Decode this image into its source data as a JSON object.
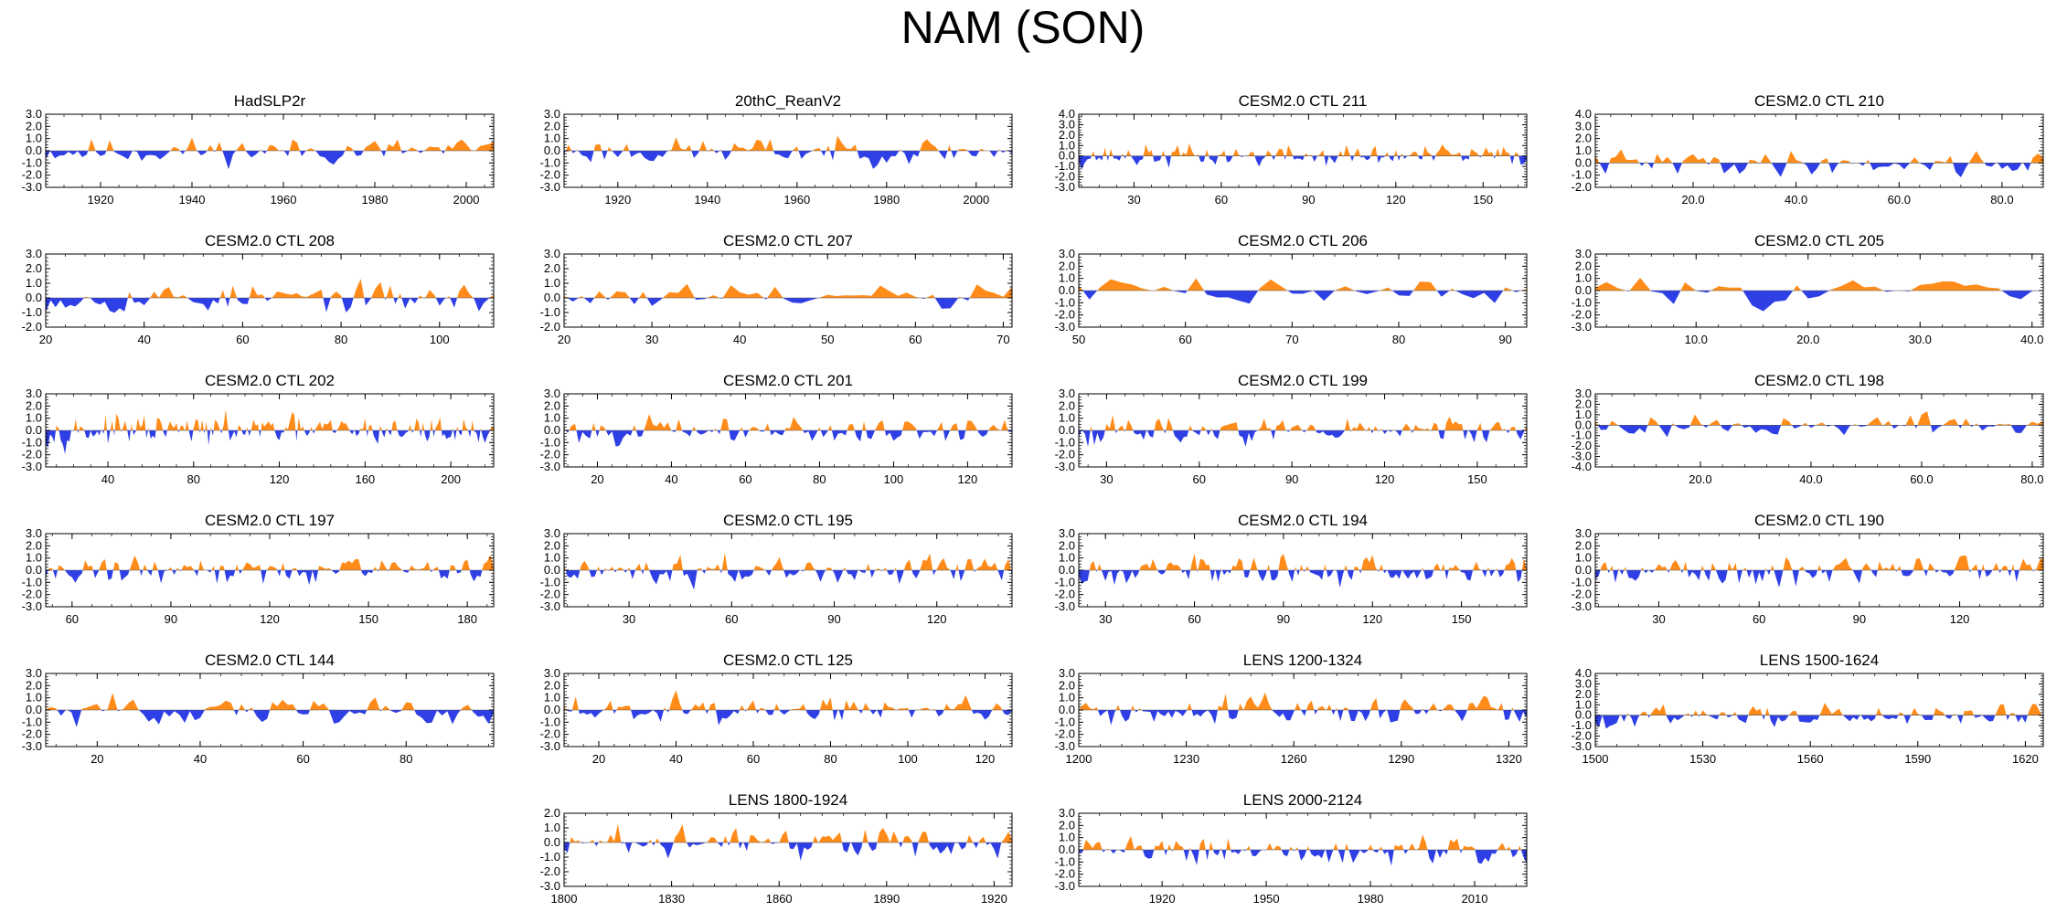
{
  "title": "NAM (SON)",
  "colors": {
    "positive": "#ff8c1a",
    "negative": "#2f3fe6",
    "axis": "#000000"
  },
  "chart_data": [
    {
      "type": "area",
      "title": "HadSLP2r",
      "ylim": [
        -3,
        3
      ],
      "yticks": [
        "3.0",
        "2.0",
        "1.0",
        "0.0",
        "-1.0",
        "-2.0",
        "-3.0"
      ],
      "xlim": [
        1908,
        2006
      ],
      "xticks": [
        1920,
        1940,
        1960,
        1980,
        2000
      ],
      "xtick_labels": [
        "1920",
        "1940",
        "1960",
        "1980",
        "2000"
      ],
      "seed": 11,
      "amp": 1.1
    },
    {
      "type": "area",
      "title": "20thC_ReanV2",
      "ylim": [
        -3,
        3
      ],
      "yticks": [
        "3.0",
        "2.0",
        "1.0",
        "0.0",
        "-1.0",
        "-2.0",
        "-3.0"
      ],
      "xlim": [
        1908,
        2008
      ],
      "xticks": [
        1920,
        1940,
        1960,
        1980,
        2000
      ],
      "xtick_labels": [
        "1920",
        "1940",
        "1960",
        "1980",
        "2000"
      ],
      "seed": 23,
      "amp": 1.1
    },
    {
      "type": "area",
      "title": "CESM2.0 CTL 211",
      "ylim": [
        -3,
        4
      ],
      "yticks": [
        "4.0",
        "3.0",
        "2.0",
        "1.0",
        "0.0",
        "-1.0",
        "-2.0",
        "-3.0"
      ],
      "xlim": [
        11,
        165
      ],
      "xticks": [
        30,
        60,
        90,
        120,
        150
      ],
      "xtick_labels": [
        "30",
        "60",
        "90",
        "120",
        "150"
      ],
      "seed": 37,
      "amp": 1.1
    },
    {
      "type": "area",
      "title": "CESM2.0 CTL 210",
      "ylim": [
        -2,
        4
      ],
      "yticks": [
        "4.0",
        "3.0",
        "2.0",
        "1.0",
        "0.0",
        "-1.0",
        "-2.0"
      ],
      "xlim": [
        1,
        88
      ],
      "xticks": [
        20,
        40,
        60,
        80
      ],
      "xtick_labels": [
        "20.0",
        "40.0",
        "60.0",
        "80.0"
      ],
      "seed": 41,
      "amp": 1.0
    },
    {
      "type": "area",
      "title": "CESM2.0 CTL 208",
      "ylim": [
        -2,
        3
      ],
      "yticks": [
        "3.0",
        "2.0",
        "1.0",
        "0.0",
        "-1.0",
        "-2.0"
      ],
      "xlim": [
        20,
        111
      ],
      "xticks": [
        20,
        40,
        60,
        80,
        100
      ],
      "xtick_labels": [
        "20",
        "40",
        "60",
        "80",
        "100"
      ],
      "seed": 53,
      "amp": 1.0
    },
    {
      "type": "area",
      "title": "CESM2.0 CTL 207",
      "ylim": [
        -2,
        3
      ],
      "yticks": [
        "3.0",
        "2.0",
        "1.0",
        "0.0",
        "-1.0",
        "-2.0"
      ],
      "xlim": [
        20,
        71
      ],
      "xticks": [
        20,
        30,
        40,
        50,
        60,
        70
      ],
      "xtick_labels": [
        "20",
        "30",
        "40",
        "50",
        "60",
        "70"
      ],
      "seed": 61,
      "amp": 1.0
    },
    {
      "type": "area",
      "title": "CESM2.0 CTL 206",
      "ylim": [
        -3,
        3
      ],
      "yticks": [
        "3.0",
        "2.0",
        "1.0",
        "0.0",
        "-1.0",
        "-2.0",
        "-3.0"
      ],
      "xlim": [
        50,
        92
      ],
      "xticks": [
        50,
        60,
        70,
        80,
        90
      ],
      "xtick_labels": [
        "50",
        "60",
        "70",
        "80",
        "90"
      ],
      "seed": 73,
      "amp": 1.0
    },
    {
      "type": "area",
      "title": "CESM2.0 CTL 205",
      "ylim": [
        -3,
        3
      ],
      "yticks": [
        "3.0",
        "2.0",
        "1.0",
        "0.0",
        "-1.0",
        "-2.0",
        "-3.0"
      ],
      "xlim": [
        1,
        41
      ],
      "xticks": [
        10,
        20,
        30,
        40
      ],
      "xtick_labels": [
        "10.0",
        "20.0",
        "30.0",
        "40.0"
      ],
      "seed": 83,
      "amp": 1.1
    },
    {
      "type": "area",
      "title": "CESM2.0 CTL 202",
      "ylim": [
        -3,
        3
      ],
      "yticks": [
        "3.0",
        "2.0",
        "1.0",
        "0.0",
        "-1.0",
        "-2.0",
        "-3.0"
      ],
      "xlim": [
        11,
        220
      ],
      "xticks": [
        40,
        80,
        120,
        160,
        200
      ],
      "xtick_labels": [
        "40",
        "80",
        "120",
        "160",
        "200"
      ],
      "seed": 97,
      "amp": 1.2
    },
    {
      "type": "area",
      "title": "CESM2.0 CTL 201",
      "ylim": [
        -3,
        3
      ],
      "yticks": [
        "3.0",
        "2.0",
        "1.0",
        "0.0",
        "-1.0",
        "-2.0",
        "-3.0"
      ],
      "xlim": [
        11,
        132
      ],
      "xticks": [
        20,
        40,
        60,
        80,
        100,
        120
      ],
      "xtick_labels": [
        "20",
        "40",
        "60",
        "80",
        "100",
        "120"
      ],
      "seed": 101,
      "amp": 1.1
    },
    {
      "type": "area",
      "title": "CESM2.0 CTL 199",
      "ylim": [
        -3,
        3
      ],
      "yticks": [
        "3.0",
        "2.0",
        "1.0",
        "0.0",
        "-1.0",
        "-2.0",
        "-3.0"
      ],
      "xlim": [
        21,
        166
      ],
      "xticks": [
        30,
        60,
        90,
        120,
        150
      ],
      "xtick_labels": [
        "30",
        "60",
        "90",
        "120",
        "150"
      ],
      "seed": 113,
      "amp": 1.1
    },
    {
      "type": "area",
      "title": "CESM2.0 CTL 198",
      "ylim": [
        -4,
        3
      ],
      "yticks": [
        "3.0",
        "2.0",
        "1.0",
        "0.0",
        "-1.0",
        "-2.0",
        "-3.0",
        "-4.0"
      ],
      "xlim": [
        1,
        82
      ],
      "xticks": [
        20,
        40,
        60,
        80
      ],
      "xtick_labels": [
        "20.0",
        "40.0",
        "60.0",
        "80.0"
      ],
      "seed": 127,
      "amp": 1.1
    },
    {
      "type": "area",
      "title": "CESM2.0 CTL 197",
      "ylim": [
        -3,
        3
      ],
      "yticks": [
        "3.0",
        "2.0",
        "1.0",
        "0.0",
        "-1.0",
        "-2.0",
        "-3.0"
      ],
      "xlim": [
        52,
        188
      ],
      "xticks": [
        60,
        90,
        120,
        150,
        180
      ],
      "xtick_labels": [
        "60",
        "90",
        "120",
        "150",
        "180"
      ],
      "seed": 131,
      "amp": 1.1
    },
    {
      "type": "area",
      "title": "CESM2.0 CTL 195",
      "ylim": [
        -3,
        3
      ],
      "yticks": [
        "3.0",
        "2.0",
        "1.0",
        "0.0",
        "-1.0",
        "-2.0",
        "-3.0"
      ],
      "xlim": [
        11,
        142
      ],
      "xticks": [
        30,
        60,
        90,
        120
      ],
      "xtick_labels": [
        "30",
        "60",
        "90",
        "120"
      ],
      "seed": 149,
      "amp": 1.1
    },
    {
      "type": "area",
      "title": "CESM2.0 CTL 194",
      "ylim": [
        -3,
        3
      ],
      "yticks": [
        "3.0",
        "2.0",
        "1.0",
        "0.0",
        "-1.0",
        "-2.0",
        "-3.0"
      ],
      "xlim": [
        21,
        172
      ],
      "xticks": [
        30,
        60,
        90,
        120,
        150
      ],
      "xtick_labels": [
        "30",
        "60",
        "90",
        "120",
        "150"
      ],
      "seed": 157,
      "amp": 1.1
    },
    {
      "type": "area",
      "title": "CESM2.0 CTL 190",
      "ylim": [
        -3,
        3
      ],
      "yticks": [
        "3.0",
        "2.0",
        "1.0",
        "0.0",
        "-1.0",
        "-2.0",
        "-3.0"
      ],
      "xlim": [
        11,
        145
      ],
      "xticks": [
        30,
        60,
        90,
        120
      ],
      "xtick_labels": [
        "30",
        "60",
        "90",
        "120"
      ],
      "seed": 163,
      "amp": 1.1
    },
    {
      "type": "area",
      "title": "CESM2.0 CTL 144",
      "ylim": [
        -3,
        3
      ],
      "yticks": [
        "3.0",
        "2.0",
        "1.0",
        "0.0",
        "-1.0",
        "-2.0",
        "-3.0"
      ],
      "xlim": [
        10,
        97
      ],
      "xticks": [
        20,
        40,
        60,
        80
      ],
      "xtick_labels": [
        "20",
        "40",
        "60",
        "80"
      ],
      "seed": 173,
      "amp": 1.1
    },
    {
      "type": "area",
      "title": "CESM2.0 CTL 125",
      "ylim": [
        -3,
        3
      ],
      "yticks": [
        "3.0",
        "2.0",
        "1.0",
        "0.0",
        "-1.0",
        "-2.0",
        "-3.0"
      ],
      "xlim": [
        11,
        127
      ],
      "xticks": [
        20,
        40,
        60,
        80,
        100,
        120
      ],
      "xtick_labels": [
        "20",
        "40",
        "60",
        "80",
        "100",
        "120"
      ],
      "seed": 181,
      "amp": 1.1
    },
    {
      "type": "area",
      "title": "LENS 1200-1324",
      "ylim": [
        -3,
        3
      ],
      "yticks": [
        "3.0",
        "2.0",
        "1.0",
        "0.0",
        "-1.0",
        "-2.0",
        "-3.0"
      ],
      "xlim": [
        1200,
        1325
      ],
      "xticks": [
        1200,
        1230,
        1260,
        1290,
        1320
      ],
      "xtick_labels": [
        "1200",
        "1230",
        "1260",
        "1290",
        "1320"
      ],
      "seed": 191,
      "amp": 1.1
    },
    {
      "type": "area",
      "title": "LENS 1500-1624",
      "ylim": [
        -3,
        4
      ],
      "yticks": [
        "4.0",
        "3.0",
        "2.0",
        "1.0",
        "0.0",
        "-1.0",
        "-2.0",
        "-3.0"
      ],
      "xlim": [
        1500,
        1625
      ],
      "xticks": [
        1500,
        1530,
        1560,
        1590,
        1620
      ],
      "xtick_labels": [
        "1500",
        "1530",
        "1560",
        "1590",
        "1620"
      ],
      "seed": 199,
      "amp": 1.0
    },
    {
      "type": "area",
      "title": "LENS 1800-1924",
      "ylim": [
        -3,
        2
      ],
      "yticks": [
        "2.0",
        "1.0",
        "0.0",
        "-1.0",
        "-2.0",
        "-3.0"
      ],
      "xlim": [
        1800,
        1925
      ],
      "xticks": [
        1800,
        1830,
        1860,
        1890,
        1920
      ],
      "xtick_labels": [
        "1800",
        "1830",
        "1860",
        "1890",
        "1920"
      ],
      "seed": 211,
      "amp": 1.0
    },
    {
      "type": "area",
      "title": "LENS 2000-2124",
      "ylim": [
        -3,
        3
      ],
      "yticks": [
        "3.0",
        "2.0",
        "1.0",
        "0.0",
        "-1.0",
        "-2.0",
        "-3.0"
      ],
      "xlim": [
        1896,
        2025
      ],
      "xticks": [
        1920,
        1950,
        1980,
        2010
      ],
      "xtick_labels": [
        "1920",
        "1950",
        "1980",
        "2010"
      ],
      "seed": 223,
      "amp": 1.1
    }
  ]
}
